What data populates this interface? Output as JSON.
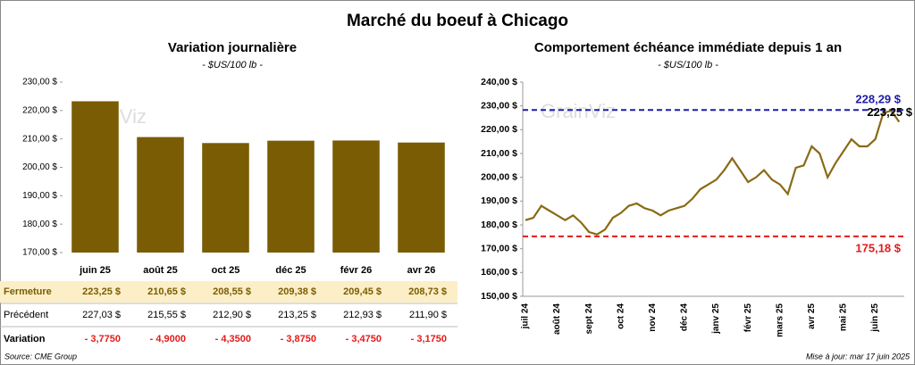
{
  "title": "Marché du boeuf à Chicago",
  "watermark": "GrainViz",
  "source": "Source: CME Group",
  "updated": "Mise à jour: mar 17 juin 2025",
  "chart_data": [
    {
      "type": "bar",
      "title": "Variation journalière",
      "subtitle": "- $US/100 lb -",
      "color": "#7a5c05",
      "categories": [
        "juin 25",
        "août 25",
        "oct 25",
        "déc 25",
        "févr 26",
        "avr 26"
      ],
      "values": [
        223.25,
        210.65,
        208.55,
        209.38,
        209.45,
        208.73
      ],
      "ylim": [
        170,
        230
      ],
      "yticks": [
        {
          "value": 170,
          "label": "170,00 $"
        },
        {
          "value": 180,
          "label": "180,00 $"
        },
        {
          "value": 190,
          "label": "190,00 $"
        },
        {
          "value": 200,
          "label": "200,00 $"
        },
        {
          "value": 210,
          "label": "210,00 $"
        },
        {
          "value": 220,
          "label": "220,00 $"
        },
        {
          "value": 230,
          "label": "230,00 $"
        }
      ]
    },
    {
      "type": "line",
      "title": "Comportement échéance immédiate depuis 1 an",
      "subtitle": "- $US/100 lb -",
      "color": "#8a6a14",
      "categories": [
        "juil 24",
        null,
        null,
        null,
        "août 24",
        null,
        null,
        null,
        "sept 24",
        null,
        null,
        null,
        "oct 24",
        null,
        null,
        null,
        "nov 24",
        null,
        null,
        null,
        "déc 24",
        null,
        null,
        null,
        "janv 25",
        null,
        null,
        null,
        "févr 25",
        null,
        null,
        null,
        "mars 25",
        null,
        null,
        null,
        "avr 25",
        null,
        null,
        null,
        "mai 25",
        null,
        null,
        null,
        "juin 25",
        null,
        null,
        null
      ],
      "values": [
        182,
        183,
        188,
        186,
        184,
        182,
        184,
        181,
        177,
        176,
        178,
        183,
        185,
        188,
        189,
        187,
        186,
        184,
        186,
        187,
        188,
        191,
        195,
        197,
        199,
        203,
        208,
        203,
        198,
        200,
        203,
        199,
        197,
        193,
        204,
        205,
        213,
        210,
        200,
        206,
        211,
        216,
        213,
        213,
        216,
        227,
        228,
        223.25
      ],
      "value_labels": [
        null,
        null,
        null,
        null,
        null,
        null,
        null,
        null,
        null,
        null,
        null,
        null,
        null,
        null,
        null,
        null,
        null,
        null,
        null,
        null,
        null,
        null,
        null,
        null,
        null,
        null,
        null,
        null,
        null,
        null,
        null,
        null,
        null,
        null,
        null,
        null,
        null,
        null,
        null,
        null,
        null,
        null,
        null,
        null,
        null,
        null,
        null,
        "223,25 $"
      ],
      "ylim": [
        150,
        240
      ],
      "yticks": [
        {
          "value": 150,
          "label": "150,00 $"
        },
        {
          "value": 160,
          "label": "160,00 $"
        },
        {
          "value": 170,
          "label": "170,00 $"
        },
        {
          "value": 180,
          "label": "180,00 $"
        },
        {
          "value": 190,
          "label": "190,00 $"
        },
        {
          "value": 200,
          "label": "200,00 $"
        },
        {
          "value": 210,
          "label": "210,00 $"
        },
        {
          "value": 220,
          "label": "220,00 $"
        },
        {
          "value": 230,
          "label": "230,00 $"
        },
        {
          "value": 240,
          "label": "240,00 $"
        }
      ],
      "lines": [
        {
          "value": 228.29,
          "label": "228,29 $",
          "color": "#1c1ca8"
        },
        {
          "value": 175.18,
          "label": "175,18 $",
          "color": "#e41a1a"
        }
      ]
    }
  ],
  "table": {
    "rows": [
      {
        "label": "Fermeture",
        "cells": [
          "223,25 $",
          "210,65 $",
          "208,55 $",
          "209,38 $",
          "209,45 $",
          "208,73 $"
        ]
      },
      {
        "label": "Précédent",
        "cells": [
          "227,03 $",
          "215,55 $",
          "212,90 $",
          "213,25 $",
          "212,93 $",
          "211,90 $"
        ]
      },
      {
        "label": "Variation",
        "cells": [
          "- 3,7750",
          "- 4,9000",
          "- 4,3500",
          "- 3,8750",
          "- 3,4750",
          "- 3,1750"
        ]
      }
    ]
  }
}
